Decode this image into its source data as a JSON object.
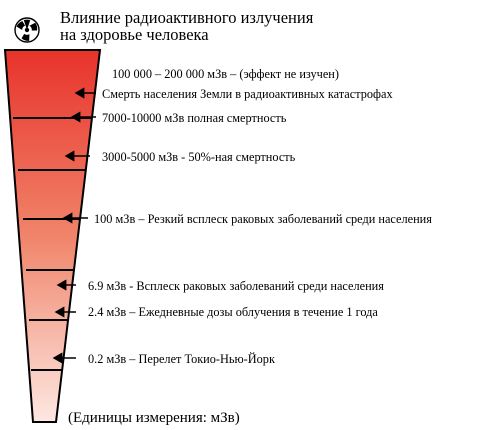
{
  "title": {
    "line1": "Влияние радиоактивного излучения",
    "line2": "на здоровье человека"
  },
  "colors": {
    "top": "#e8332b",
    "middle": "#f0846a",
    "bottom": "#fde8e2",
    "stroke": "#000000"
  },
  "levels": [
    {
      "text": "100 000 – 200 000 мЗв – (эффект не изучен)"
    },
    {
      "text": "Смерть населения Земли в радиоактивных  катастрофах"
    },
    {
      "text": "7000-10000 мЗв  полная смертность"
    },
    {
      "text": "3000-5000 мЗв  - 50%-ная смертность"
    },
    {
      "text": "100 мЗв – Резкий всплеск раковых заболеваний среди населения"
    },
    {
      "text": "6.9 мЗв  - Всплеск раковых заболеваний среди населения"
    },
    {
      "text": "2.4 мЗв – Ежедневные дозы облучения в течение 1 года"
    },
    {
      "text": "0.2 мЗв – Перелет Токио-Нью-Йорк"
    }
  ],
  "units": "(Единицы измерения: мЗв)",
  "icon": "radiation-icon"
}
